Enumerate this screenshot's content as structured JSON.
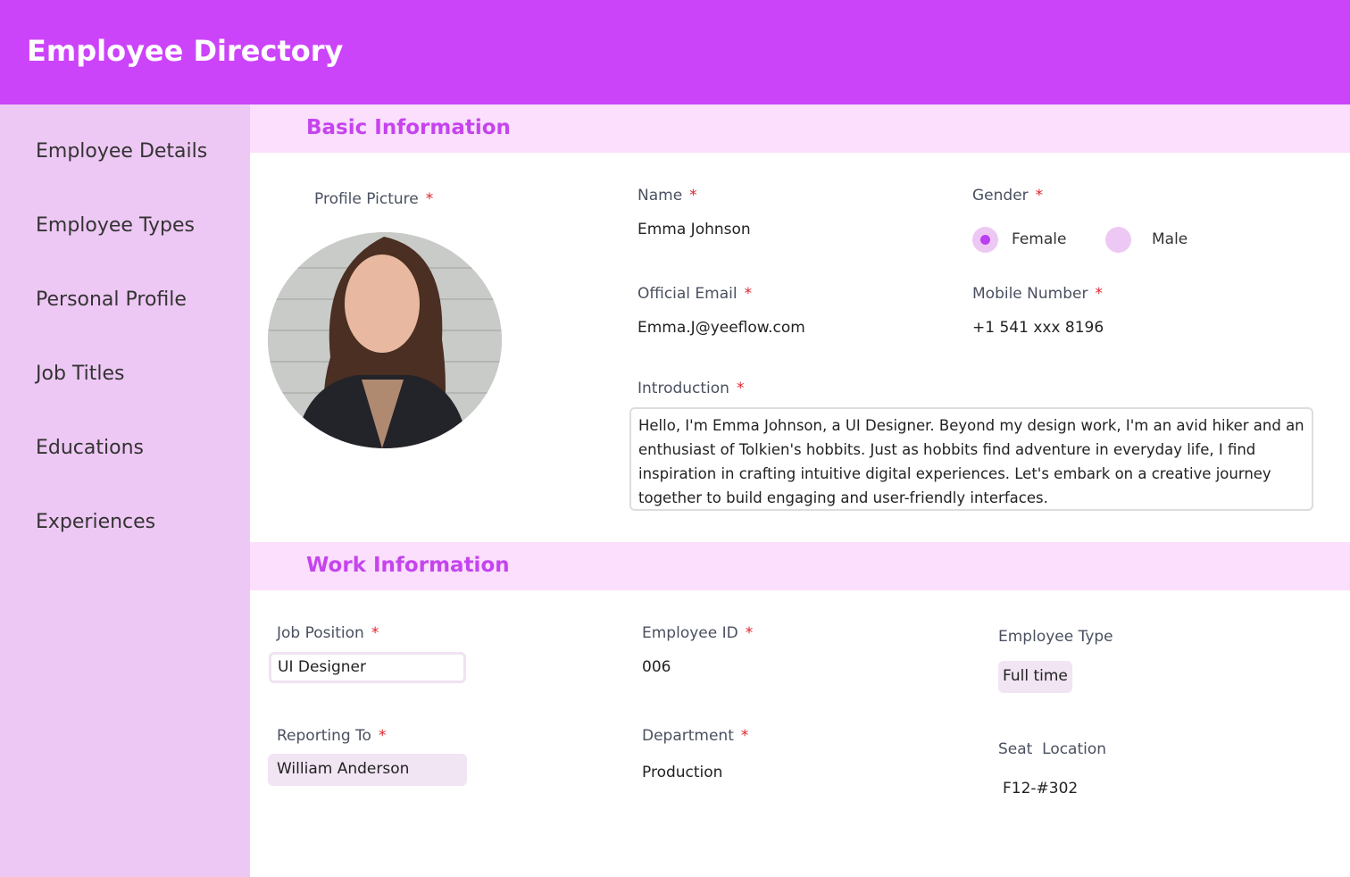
{
  "header": {
    "title": "Employee Directory"
  },
  "sidebar": {
    "items": [
      {
        "label": "Employee Details"
      },
      {
        "label": "Employee Types"
      },
      {
        "label": "Personal Profile"
      },
      {
        "label": "Job Titles"
      },
      {
        "label": "Educations"
      },
      {
        "label": "Experiences"
      }
    ]
  },
  "basic": {
    "title": "Basic Information",
    "profile_label": "Profile Picture",
    "name_label": "Name",
    "name": "Emma Johnson",
    "gender_label": "Gender",
    "gender_options": [
      "Female",
      "Male"
    ],
    "gender_selected": "Female",
    "email_label": "Official Email",
    "email": "Emma.J@yeeflow.com",
    "mobile_label": "Mobile Number",
    "mobile": "+1 541 xxx 8196",
    "intro_label": "Introduction",
    "intro": "Hello, I'm Emma Johnson, a UI Designer. Beyond my design work, I'm an avid hiker and an enthusiast of Tolkien's hobbits. Just as hobbits find adventure in everyday life, I find inspiration in crafting intuitive digital experiences. Let's embark on a creative journey together to build engaging and user-friendly interfaces."
  },
  "work": {
    "title": "Work Information",
    "job_label": "Job Position",
    "job": "UI Designer",
    "id_label": "Employee ID",
    "id": "006",
    "type_label": "Employee Type",
    "type": "Full time",
    "reporting_label": "Reporting To",
    "reporting": "William Anderson",
    "dept_label": "Department",
    "dept": "Production",
    "seat_label": "Seat  Location",
    "seat": "F12-#302"
  },
  "required_mark": "*",
  "colors": {
    "header": "#cc44fa",
    "sidebar": "#eec8f4",
    "band": "#fbdffc",
    "section_title": "#c544ee",
    "required": "#e0242e"
  }
}
